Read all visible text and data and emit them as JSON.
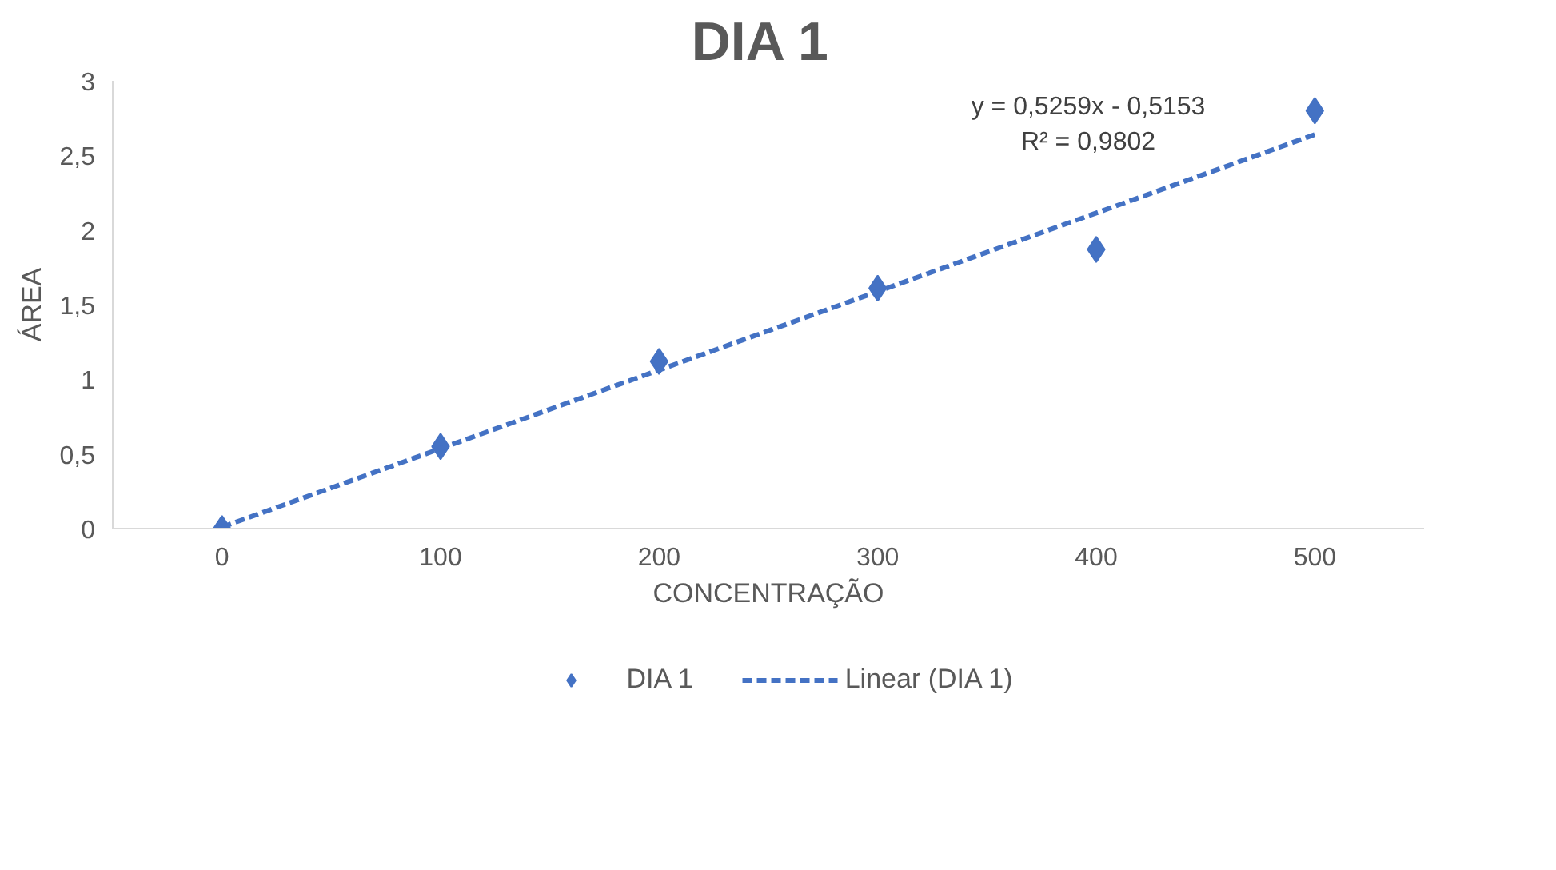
{
  "chart_data": {
    "type": "scatter",
    "title": "DIA  1",
    "xlabel": "CONCENTRAÇÃO",
    "ylabel": "ÁREA",
    "x": [
      0,
      100,
      200,
      300,
      400,
      500
    ],
    "series": [
      {
        "name": "DIA 1",
        "color": "#4472c4",
        "values": [
          0,
          0.55,
          1.12,
          1.61,
          1.87,
          2.8
        ],
        "marker": "diamond"
      },
      {
        "name": "Linear (DIA 1)",
        "type": "line",
        "color": "#4472c4",
        "x": [
          0,
          500
        ],
        "values": [
          0.01,
          2.64
        ],
        "line_style": "dashed",
        "marker": "none"
      }
    ],
    "annotations": [
      "y = 0,5259x - 0,5153\nR² = 0,9802"
    ],
    "xlim": [
      -50,
      550
    ],
    "ylim": [
      0,
      3
    ],
    "xticks": [
      0,
      100,
      200,
      300,
      400,
      500
    ],
    "yticks": [
      0,
      {
        "value": 0.5,
        "label": "0,5"
      },
      1,
      {
        "value": 1.5,
        "label": "1,5"
      },
      2,
      {
        "value": 2.5,
        "label": "2,5"
      },
      3
    ],
    "grid": false,
    "legend": "bottom"
  }
}
